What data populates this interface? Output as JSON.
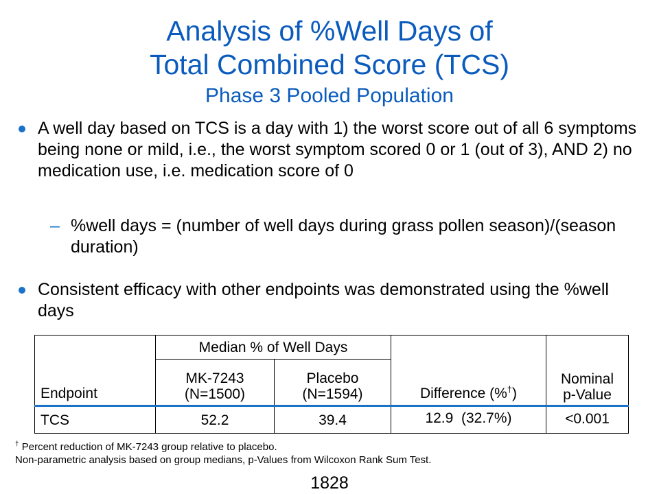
{
  "title": {
    "line1": "Analysis of %Well Days of",
    "line2": "Total Combined Score (TCS)",
    "subtitle": "Phase 3 Pooled Population"
  },
  "bullets": [
    {
      "text": "A well day based on TCS is a day with 1) the worst score out of all 6 symptoms being none or mild, i.e., the worst symptom scored 0 or 1 (out of 3), AND 2) no medication use, i.e. medication score of 0",
      "sub": {
        "dash": "–",
        "text": "%well days = (number of well days during grass pollen season)/(season duration)"
      }
    },
    {
      "text": "Consistent efficacy with other endpoints was demonstrated using the %well days"
    }
  ],
  "table": {
    "headers": {
      "endpoint": "Endpoint",
      "median_group": "Median % of Well Days",
      "mk_name": "MK-7243",
      "mk_n": "(N=1500)",
      "pl_name": "Placebo",
      "pl_n": "(N=1594)",
      "difference": "Difference (%",
      "difference_mark": "†",
      "difference_close": ")",
      "pvalue_line1": "Nominal",
      "pvalue_line2": "p-Value"
    },
    "rows": [
      {
        "endpoint": "TCS",
        "mk": "52.2",
        "placebo": "39.4",
        "difference": "12.9  (32.7%)",
        "pvalue": "<0.001"
      }
    ]
  },
  "footnotes": {
    "mark": "†",
    "line1": " Percent reduction of MK-7243 group relative to placebo.",
    "line2": "Non-parametric analysis based on group medians, p-Values from Wilcoxon Rank Sum Test."
  },
  "page_number": "1828",
  "colors": {
    "title": "#0a5bbd",
    "bullet": "#1a73c8",
    "table_divider": "#1a73c8"
  }
}
